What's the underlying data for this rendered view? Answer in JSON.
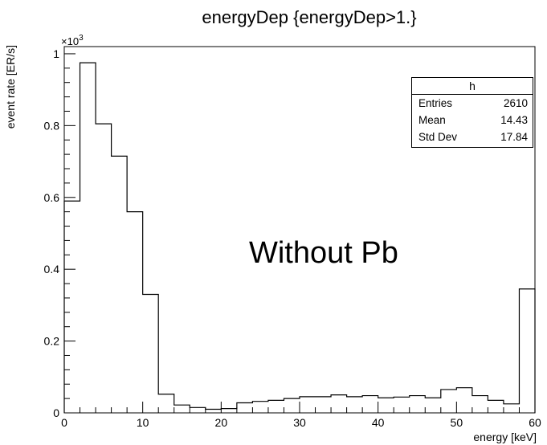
{
  "chart_data": {
    "type": "bar",
    "title": "energyDep {energyDep>1.}",
    "xlabel": "energy [keV]",
    "ylabel": "event rate [ER/s]",
    "y_multiplier_label": "×10",
    "y_multiplier_exponent": "3",
    "xlim": [
      0,
      60
    ],
    "ylim": [
      0,
      1.02
    ],
    "x_ticks": [
      "0",
      "10",
      "20",
      "30",
      "40",
      "50",
      "60"
    ],
    "y_ticks": [
      "0",
      "0.2",
      "0.4",
      "0.6",
      "0.8",
      "1"
    ],
    "bin_edges": [
      0,
      2,
      4,
      6,
      8,
      10,
      12,
      14,
      16,
      18,
      20,
      22,
      24,
      26,
      28,
      30,
      32,
      34,
      36,
      38,
      40,
      42,
      44,
      46,
      48,
      50,
      52,
      54,
      56,
      58,
      60
    ],
    "values": [
      0.59,
      0.975,
      0.805,
      0.715,
      0.56,
      0.33,
      0.052,
      0.022,
      0.015,
      0.01,
      0.012,
      0.028,
      0.032,
      0.035,
      0.04,
      0.045,
      0.045,
      0.05,
      0.045,
      0.048,
      0.042,
      0.044,
      0.048,
      0.042,
      0.065,
      0.07,
      0.048,
      0.035,
      0.025,
      0.345
    ],
    "stats": {
      "name": "h",
      "rows": [
        {
          "label": "Entries",
          "value": "2610"
        },
        {
          "label": "Mean",
          "value": "14.43"
        },
        {
          "label": "Std Dev",
          "value": "17.84"
        }
      ]
    },
    "annotation": "Without Pb",
    "grid": false,
    "line_color": "#000000"
  }
}
